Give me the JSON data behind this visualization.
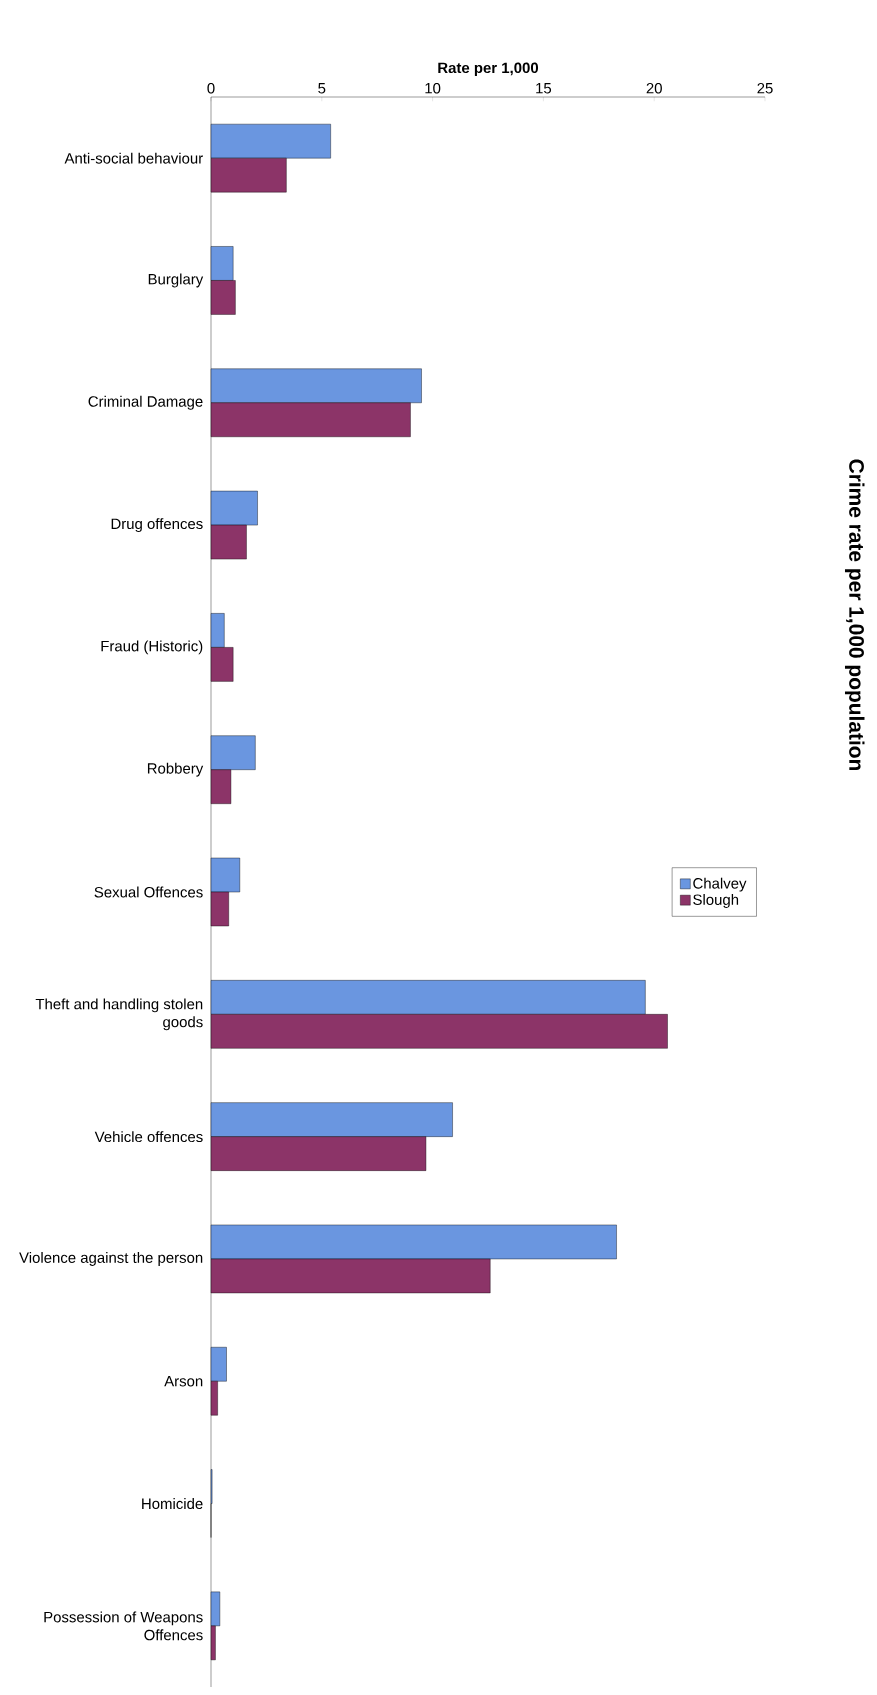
{
  "chart_data": {
    "type": "bar",
    "orientation": "horizontal",
    "title": "Crime rate per 1,000 population",
    "xlabel": "Rate per 1,000",
    "categories": [
      "Anti-social behaviour",
      "Burglary",
      "Criminal Damage",
      "Drug offences",
      "Fraud (Historic)",
      "Robbery",
      "Sexual Offences",
      "Theft and handling stolen goods",
      "Vehicle offences",
      "Violence against the person",
      "Arson",
      "Homicide",
      "Possession of Weapons Offences"
    ],
    "series": [
      {
        "name": "Chalvey",
        "color": "#6a96e0",
        "values": [
          5.4,
          1.0,
          9.5,
          2.1,
          0.6,
          2.0,
          1.3,
          19.6,
          10.9,
          18.3,
          0.7,
          0.05,
          0.4
        ]
      },
      {
        "name": "Slough",
        "color": "#8c3468",
        "values": [
          3.4,
          1.1,
          9.0,
          1.6,
          1.0,
          0.9,
          0.8,
          20.6,
          9.7,
          12.6,
          0.3,
          0.0,
          0.2
        ]
      }
    ],
    "xlim": [
      0,
      25
    ],
    "xticks": [
      0,
      5,
      10,
      15,
      20,
      25
    ],
    "legend": "right",
    "grid": false
  }
}
